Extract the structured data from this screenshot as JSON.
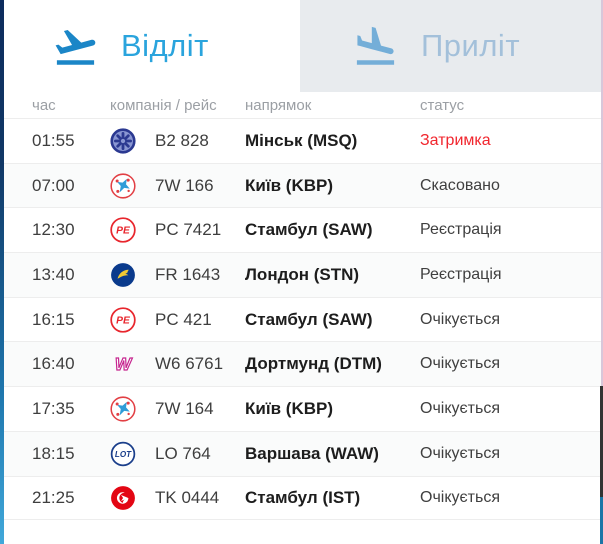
{
  "tabs": [
    {
      "label": "Відліт",
      "icon": "plane-takeoff-icon",
      "active": true
    },
    {
      "label": "Приліт",
      "icon": "plane-landing-icon",
      "active": false
    }
  ],
  "table": {
    "headers": {
      "time": "час",
      "company_flight": "компанія / рейс",
      "direction": "напрямок",
      "status": "статус"
    },
    "rows": [
      {
        "time": "01:55",
        "airline": "belavia",
        "flight": "B2 828",
        "direction": "Мінськ (MSQ)",
        "status": "Затримка",
        "status_type": "delayed"
      },
      {
        "time": "07:00",
        "airline": "windrose",
        "flight": "7W 166",
        "direction": "Київ (KBP)",
        "status": "Скасовано",
        "status_type": "normal"
      },
      {
        "time": "12:30",
        "airline": "pegasus",
        "flight": "PC 7421",
        "direction": "Стамбул (SAW)",
        "status": "Реєстрація",
        "status_type": "normal"
      },
      {
        "time": "13:40",
        "airline": "ryanair",
        "flight": "FR 1643",
        "direction": "Лондон (STN)",
        "status": "Реєстрація",
        "status_type": "normal"
      },
      {
        "time": "16:15",
        "airline": "pegasus",
        "flight": "PC 421",
        "direction": "Стамбул (SAW)",
        "status": "Очікується",
        "status_type": "normal"
      },
      {
        "time": "16:40",
        "airline": "wizzair",
        "flight": "W6 6761",
        "direction": "Дортмунд (DTM)",
        "status": "Очікується",
        "status_type": "normal"
      },
      {
        "time": "17:35",
        "airline": "windrose",
        "flight": "7W 164",
        "direction": "Київ (KBP)",
        "status": "Очікується",
        "status_type": "normal"
      },
      {
        "time": "18:15",
        "airline": "lot",
        "flight": "LO 764",
        "direction": "Варшава (WAW)",
        "status": "Очікується",
        "status_type": "normal"
      },
      {
        "time": "21:25",
        "airline": "turkish",
        "flight": "TK 0444",
        "direction": "Стамбул (IST)",
        "status": "Очікується",
        "status_type": "normal"
      }
    ]
  },
  "colors": {
    "accent_blue": "#1b86c7",
    "active_tab_text": "#2aa4dd",
    "inactive_tab_text": "#a3c0da",
    "inactive_tab_bg": "#e8ebee",
    "header_text": "#9b9fa4",
    "delay_red": "#f1262e"
  }
}
